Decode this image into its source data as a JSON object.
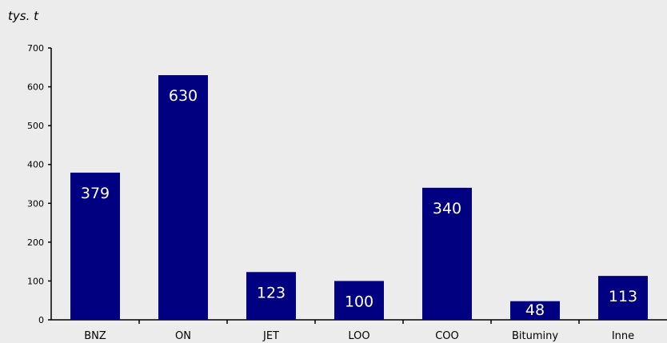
{
  "chart_data": {
    "type": "bar",
    "ylabel": "tys. t",
    "categories": [
      "BNZ",
      "ON",
      "JET",
      "LOO",
      "COO",
      "Bituminy",
      "Inne"
    ],
    "values": [
      379,
      630,
      123,
      100,
      340,
      48,
      113
    ],
    "data_labels": [
      "379",
      "630",
      "123",
      "100",
      "340",
      "48",
      "113"
    ],
    "y_ticks": [
      0,
      100,
      200,
      300,
      400,
      500,
      600,
      700
    ],
    "ylim": [
      0,
      700
    ],
    "grid": false,
    "legend": "none",
    "bar_color": "#000080",
    "label_color": "#ffffff",
    "background_color": "#ececec"
  }
}
